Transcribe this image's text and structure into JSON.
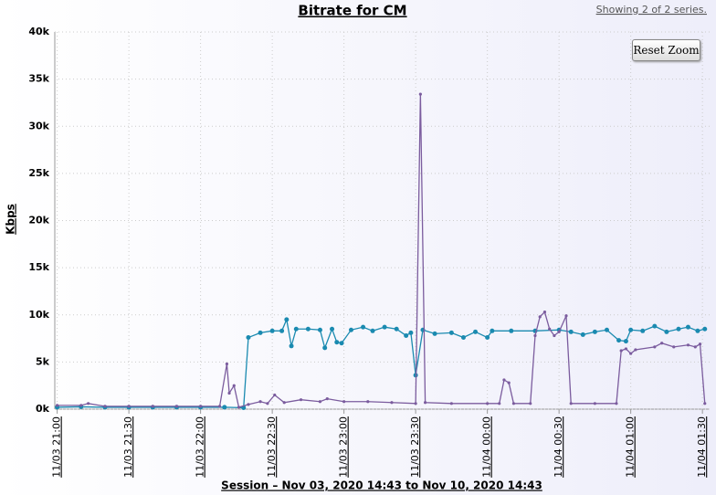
{
  "chart_data": {
    "type": "line",
    "title": "Bitrate for CM",
    "subtitle": "Showing 2 of 2 series.",
    "button": "Reset Zoom",
    "ylabel": "Kbps",
    "xlabel": "Session – Nov 03, 2020 14:43 to Nov 10, 2020 14:43",
    "grid": true,
    "xlim": [
      "11/03 20:59",
      "11/04 01:33"
    ],
    "xticks": [
      "11/03 21:00",
      "11/03 21:30",
      "11/03 22:00",
      "11/03 22:30",
      "11/03 23:00",
      "11/03 23:30",
      "11/04 00:00",
      "11/04 00:30",
      "11/04 01:00",
      "11/04 01:30"
    ],
    "ylim": [
      0,
      40000
    ],
    "yticks": [
      {
        "value": 0,
        "label": "0k"
      },
      {
        "value": 5000,
        "label": "5k"
      },
      {
        "value": 10000,
        "label": "10k"
      },
      {
        "value": 15000,
        "label": "15k"
      },
      {
        "value": 20000,
        "label": "20k"
      },
      {
        "value": 25000,
        "label": "25k"
      },
      {
        "value": 30000,
        "label": "30k"
      },
      {
        "value": 35000,
        "label": "35k"
      },
      {
        "value": 40000,
        "label": "40k"
      }
    ],
    "series": [
      {
        "color": "#1a8ab0",
        "x": [
          "11/03 21:00",
          "11/03 21:10",
          "11/03 21:20",
          "11/03 21:30",
          "11/03 21:40",
          "11/03 21:50",
          "11/03 22:00",
          "11/03 22:10",
          "11/03 22:18",
          "11/03 22:20",
          "11/03 22:25",
          "11/03 22:30",
          "11/03 22:34",
          "11/03 22:36",
          "11/03 22:38",
          "11/03 22:40",
          "11/03 22:45",
          "11/03 22:50",
          "11/03 22:52",
          "11/03 22:55",
          "11/03 22:57",
          "11/03 22:59",
          "11/03 23:03",
          "11/03 23:08",
          "11/03 23:12",
          "11/03 23:17",
          "11/03 23:22",
          "11/03 23:26",
          "11/03 23:28",
          "11/03 23:30",
          "11/03 23:33",
          "11/03 23:38",
          "11/03 23:45",
          "11/03 23:50",
          "11/03 23:55",
          "11/04 00:00",
          "11/04 00:02",
          "11/04 00:10",
          "11/04 00:20",
          "11/04 00:30",
          "11/04 00:35",
          "11/04 00:40",
          "11/04 00:45",
          "11/04 00:50",
          "11/04 00:55",
          "11/04 00:58",
          "11/04 01:00",
          "11/04 01:05",
          "11/04 01:10",
          "11/04 01:15",
          "11/04 01:20",
          "11/04 01:24",
          "11/04 01:28",
          "11/04 01:31"
        ],
        "values": [
          200,
          250,
          200,
          200,
          200,
          200,
          200,
          200,
          150,
          7600,
          8100,
          8300,
          8300,
          9500,
          6700,
          8500,
          8500,
          8400,
          6500,
          8500,
          7100,
          7000,
          8400,
          8700,
          8300,
          8700,
          8500,
          7800,
          8100,
          3600,
          8400,
          8000,
          8100,
          7600,
          8200,
          7600,
          8300,
          8300,
          8300,
          8400,
          8200,
          7900,
          8200,
          8400,
          7300,
          7200,
          8400,
          8300,
          8800,
          8200,
          8500,
          8700,
          8300,
          8500
        ]
      },
      {
        "color": "#7b5c9e",
        "x": [
          "11/03 21:00",
          "11/03 21:10",
          "11/03 21:13",
          "11/03 21:20",
          "11/03 21:30",
          "11/03 21:40",
          "11/03 21:50",
          "11/03 22:00",
          "11/03 22:08",
          "11/03 22:11",
          "11/03 22:12",
          "11/03 22:14",
          "11/03 22:16",
          "11/03 22:20",
          "11/03 22:25",
          "11/03 22:28",
          "11/03 22:31",
          "11/03 22:35",
          "11/03 22:42",
          "11/03 22:50",
          "11/03 22:53",
          "11/03 23:00",
          "11/03 23:10",
          "11/03 23:20",
          "11/03 23:30",
          "11/03 23:32",
          "11/03 23:34",
          "11/03 23:45",
          "11/04 00:00",
          "11/04 00:05",
          "11/04 00:07",
          "11/04 00:09",
          "11/04 00:11",
          "11/04 00:18",
          "11/04 00:20",
          "11/04 00:22",
          "11/04 00:24",
          "11/04 00:26",
          "11/04 00:28",
          "11/04 00:30",
          "11/04 00:33",
          "11/04 00:35",
          "11/04 00:45",
          "11/04 00:54",
          "11/04 00:56",
          "11/04 00:58",
          "11/04 01:00",
          "11/04 01:02",
          "11/04 01:10",
          "11/04 01:13",
          "11/04 01:18",
          "11/04 01:24",
          "11/04 01:27",
          "11/04 01:29",
          "11/04 01:31"
        ],
        "values": [
          400,
          400,
          600,
          300,
          300,
          300,
          300,
          300,
          300,
          4800,
          1700,
          2500,
          200,
          500,
          800,
          600,
          1500,
          700,
          1000,
          800,
          1100,
          800,
          800,
          700,
          600,
          33400,
          700,
          600,
          600,
          600,
          3100,
          2800,
          600,
          600,
          7800,
          9800,
          10300,
          8500,
          7800,
          8200,
          9900,
          600,
          600,
          600,
          6200,
          6400,
          5900,
          6300,
          6600,
          7000,
          6600,
          6800,
          6600,
          6900,
          600
        ]
      }
    ]
  }
}
